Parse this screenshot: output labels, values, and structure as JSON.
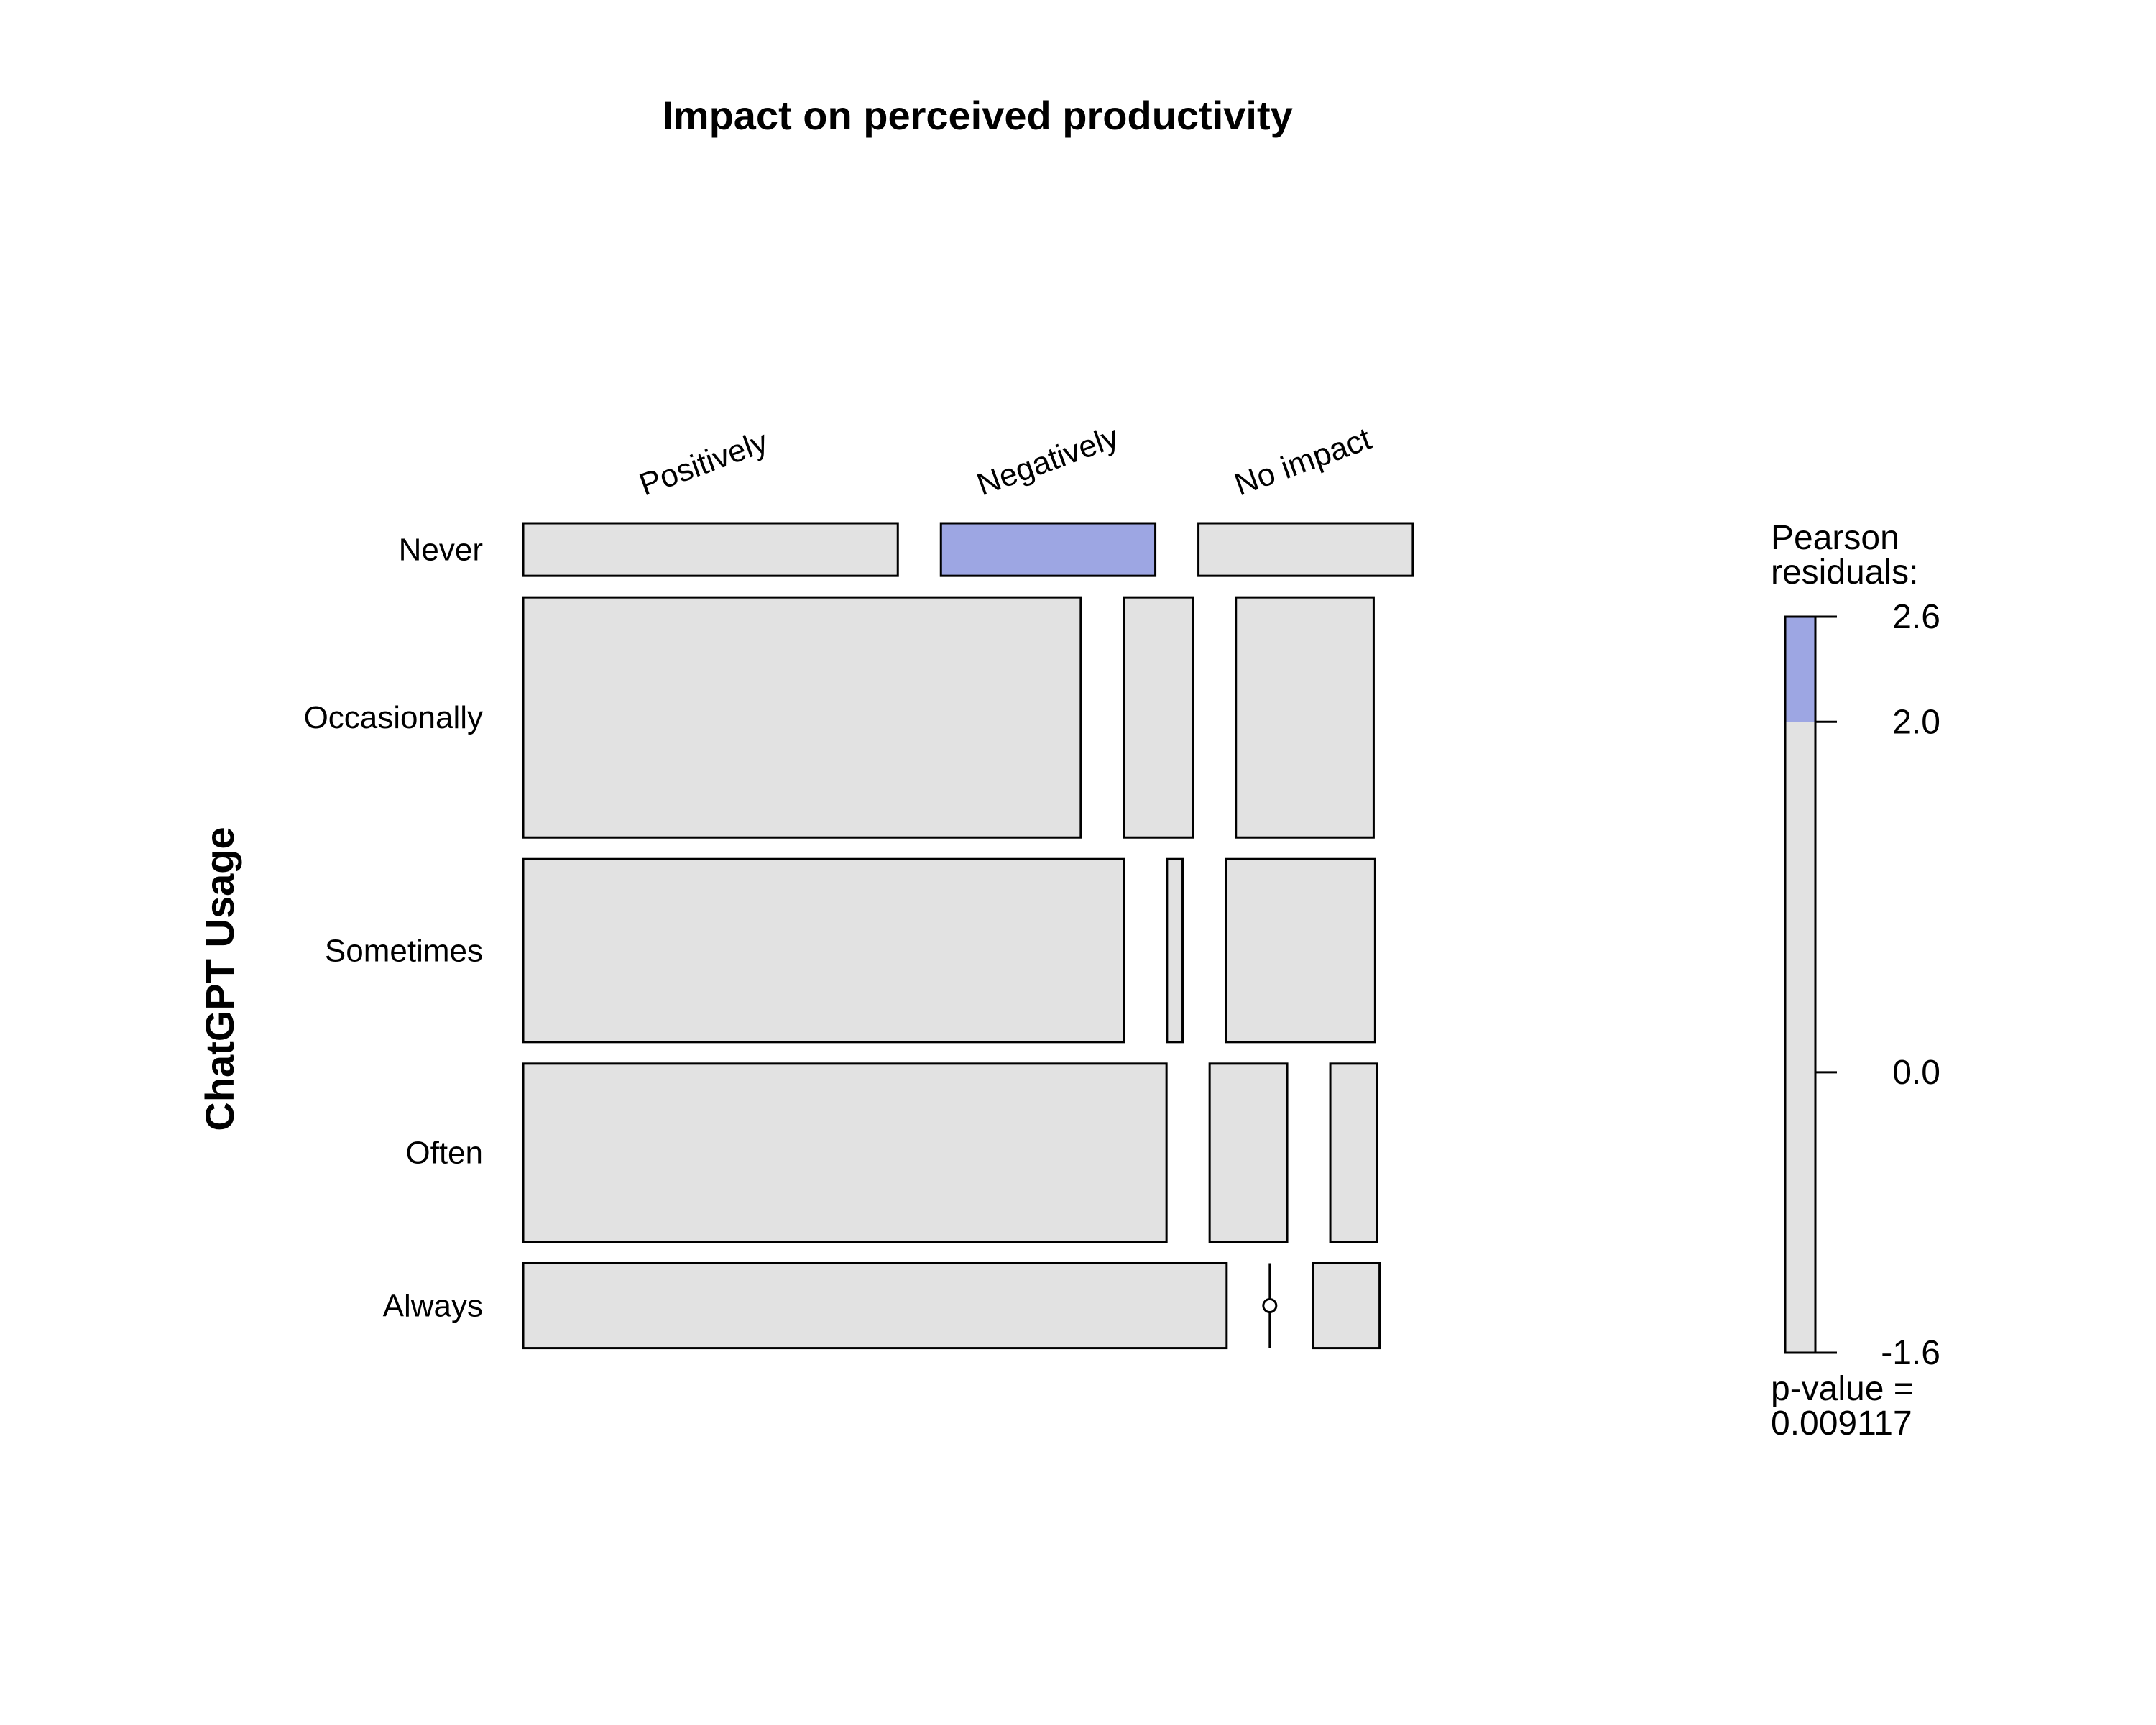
{
  "chart_data": {
    "type": "mosaic",
    "title": "Impact on perceived productivity",
    "xlabel": "",
    "ylabel": "ChatGPT Usage",
    "row_categories": [
      "Never",
      "Occasionally",
      "Sometimes",
      "Often",
      "Always"
    ],
    "col_categories": [
      "Positively",
      "Negatively",
      "No impact"
    ],
    "row_share": [
      0.0635,
      0.29,
      0.221,
      0.215,
      0.1025
    ],
    "col_share_within_row": [
      [
        0.4517,
        0.2585,
        0.2585
      ],
      [
        0.6723,
        0.0831,
        0.1661
      ],
      [
        0.7243,
        0.0188,
        0.1801
      ],
      [
        0.7757,
        0.0935,
        0.0561
      ],
      [
        0.8482,
        0.0,
        0.0804
      ]
    ],
    "residual_colors": [
      [
        "#e2e2e2",
        "#9da6e3",
        "#e2e2e2"
      ],
      [
        "#e2e2e2",
        "#e2e2e2",
        "#e2e2e2"
      ],
      [
        "#e2e2e2",
        "#e2e2e2",
        "#e2e2e2"
      ],
      [
        "#e2e2e2",
        "#e2e2e2",
        "#e2e2e2"
      ],
      [
        "#e2e2e2",
        "#e2e2e2",
        "#e2e2e2"
      ]
    ],
    "legend": {
      "title_line1": "Pearson",
      "title_line2": "residuals:",
      "min": -1.6,
      "max": 2.6,
      "ticks": [
        {
          "value": 2.6,
          "label": "2.6"
        },
        {
          "value": 2.0,
          "label": "2.0"
        },
        {
          "value": 0.0,
          "label": "0.0"
        },
        {
          "value": -1.6,
          "label": "-1.6"
        }
      ],
      "segments": [
        {
          "from": -1.6,
          "to": 2.0,
          "color": "#e2e2e2"
        },
        {
          "from": 2.0,
          "to": 2.6,
          "color": "#9da6e3"
        }
      ],
      "pvalue_label": "p-value =",
      "pvalue": "0.009117"
    }
  }
}
